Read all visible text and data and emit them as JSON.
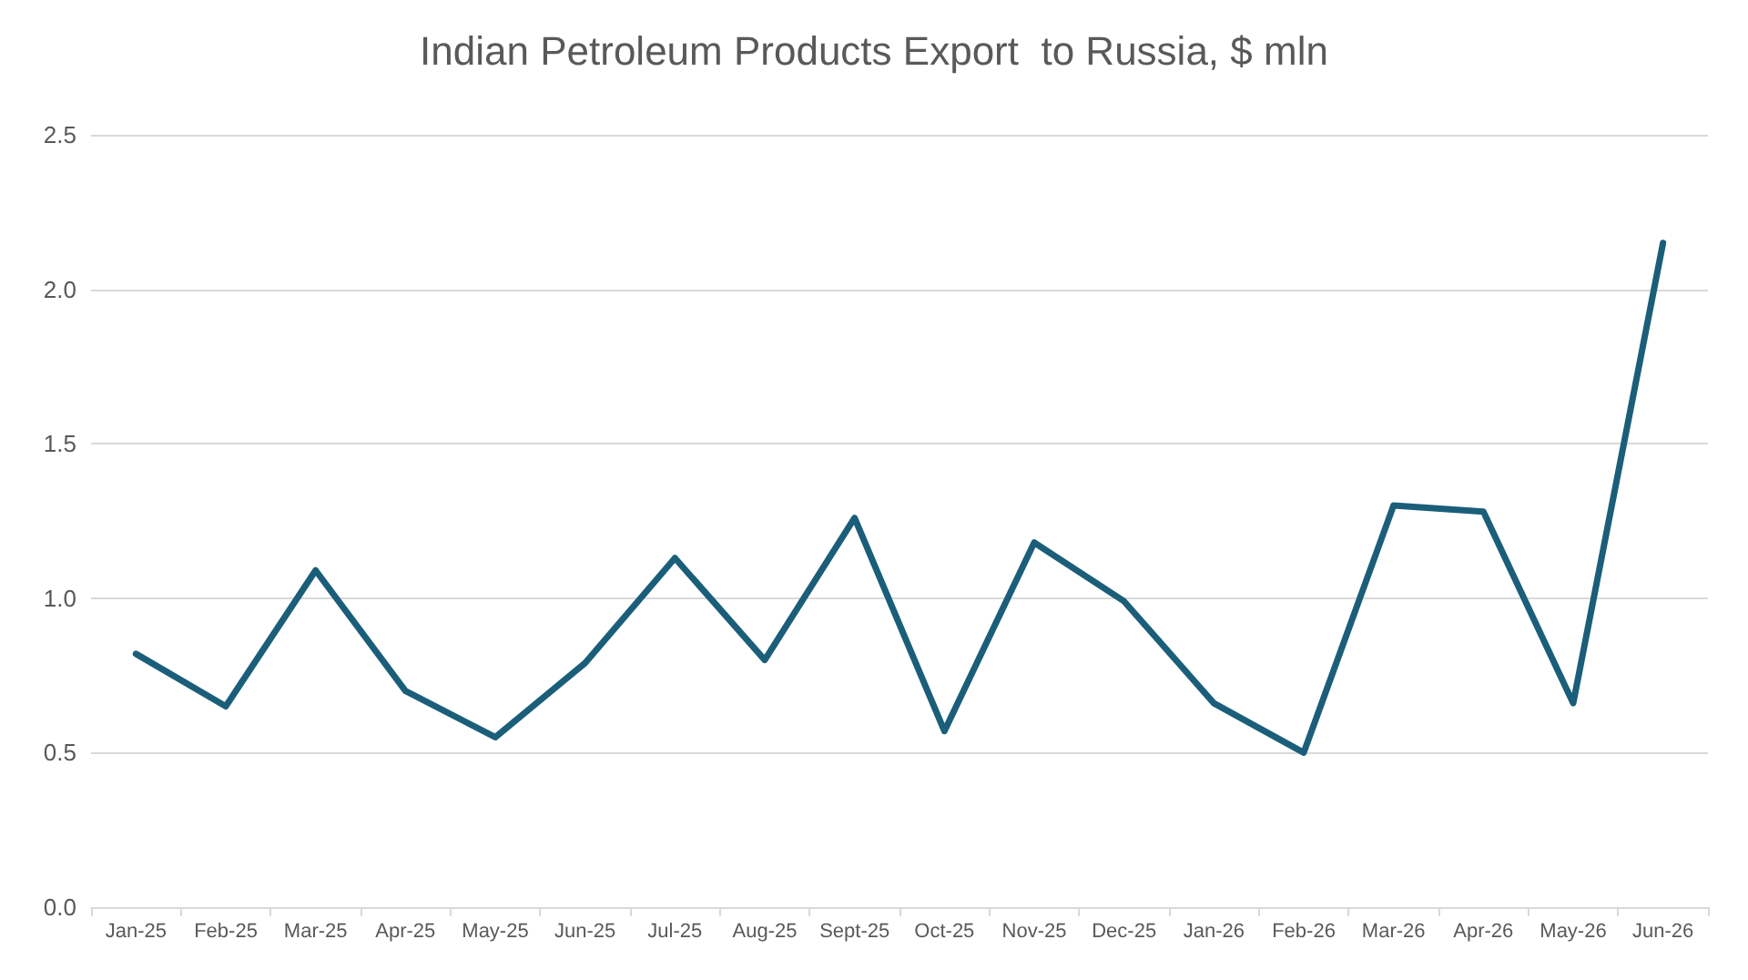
{
  "chart_data": {
    "type": "line",
    "title": "Indian Petroleum Products Export  to Russia, $ mln",
    "categories": [
      "Jan-25",
      "Feb-25",
      "Mar-25",
      "Apr-25",
      "May-25",
      "Jun-25",
      "Jul-25",
      "Aug-25",
      "Sept-25",
      "Oct-25",
      "Nov-25",
      "Dec-25",
      "Jan-26",
      "Feb-26",
      "Mar-26",
      "Apr-26",
      "May-26",
      "Jun-26"
    ],
    "series": [
      {
        "color": "#1b5e7a",
        "values": [
          0.82,
          0.65,
          1.09,
          0.7,
          0.55,
          0.79,
          1.13,
          0.8,
          1.26,
          0.57,
          1.18,
          0.99,
          0.66,
          0.5,
          1.3,
          1.28,
          0.66,
          2.15
        ]
      }
    ],
    "ylim": [
      0,
      2.5
    ],
    "yticks": [
      {
        "value": 0,
        "label": "0.0"
      },
      {
        "value": 0.5,
        "label": "0.5"
      },
      {
        "value": 1,
        "label": "1.0"
      },
      {
        "value": 1.5,
        "label": "1.5"
      },
      {
        "value": 2,
        "label": "2.0"
      },
      {
        "value": 2.5,
        "label": "2.5"
      }
    ],
    "grid": "y",
    "marker": "none",
    "line_style": "solid"
  }
}
